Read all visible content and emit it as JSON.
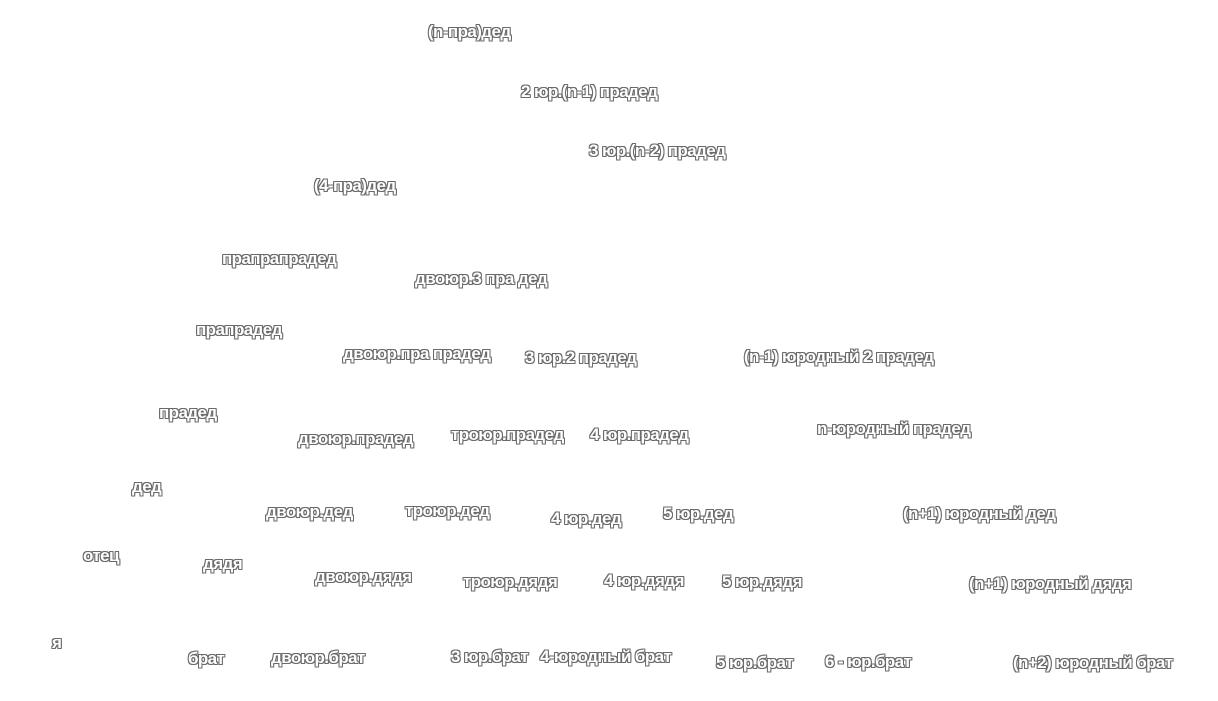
{
  "diagram": {
    "labels": {
      "n_pra_ded": "(n-пра)дед",
      "cousin2_n1_praded": "2 юр.(n-1) прадед",
      "cousin3_n2_praded": "3 юр.(n-2) прадед",
      "pra4_ded": "(4-пра)дед",
      "prapraprded": "прапрапрадед",
      "dvoyur_3praded": "двоюр.3 пра дед",
      "praprded": "прапрадед",
      "dvoyur_praprded": "двоюр.пра прадед",
      "cousin3_2praded": "3 юр.2 прадед",
      "n1_yurodny_2praded": "(n-1) юродный 2 прадед",
      "praded": "прадед",
      "dvoyur_praded": "двоюр.прадед",
      "troyur_praded": "троюр.прадед",
      "cousin4_praded": "4 юр.прадед",
      "n_yurodny_praded": "n-юродный прадед",
      "ded": "дед",
      "dvoyur_ded": "двоюр.дед",
      "troyur_ded": "троюр.дед",
      "cousin4_ded": "4 юр.дед",
      "cousin5_ded": "5 юр.дед",
      "n1_yurodny_ded": "(n+1) юродный дед",
      "otets": "отец",
      "dyadya": "дядя",
      "dvoyur_dyadya": "двоюр.дядя",
      "troyur_dyadya": "троюр.дядя",
      "cousin4_dyadya": "4 юр.дядя",
      "cousin5_dyadya": "5 юр.дядя",
      "n1_yurodny_dyadya": "(n+1) юродный дядя",
      "ya": "я",
      "brat": "брат",
      "dvoyur_brat": "двоюр.брат",
      "cousin3_brat": "3 юр.брат",
      "yurodny4_brat": "4-юродный брат",
      "cousin5_brat": "5 юр.брат",
      "cousin6_brat": "6 - юр.брат",
      "n2_yurodny_brat": "(n+2) юродный брат"
    }
  }
}
